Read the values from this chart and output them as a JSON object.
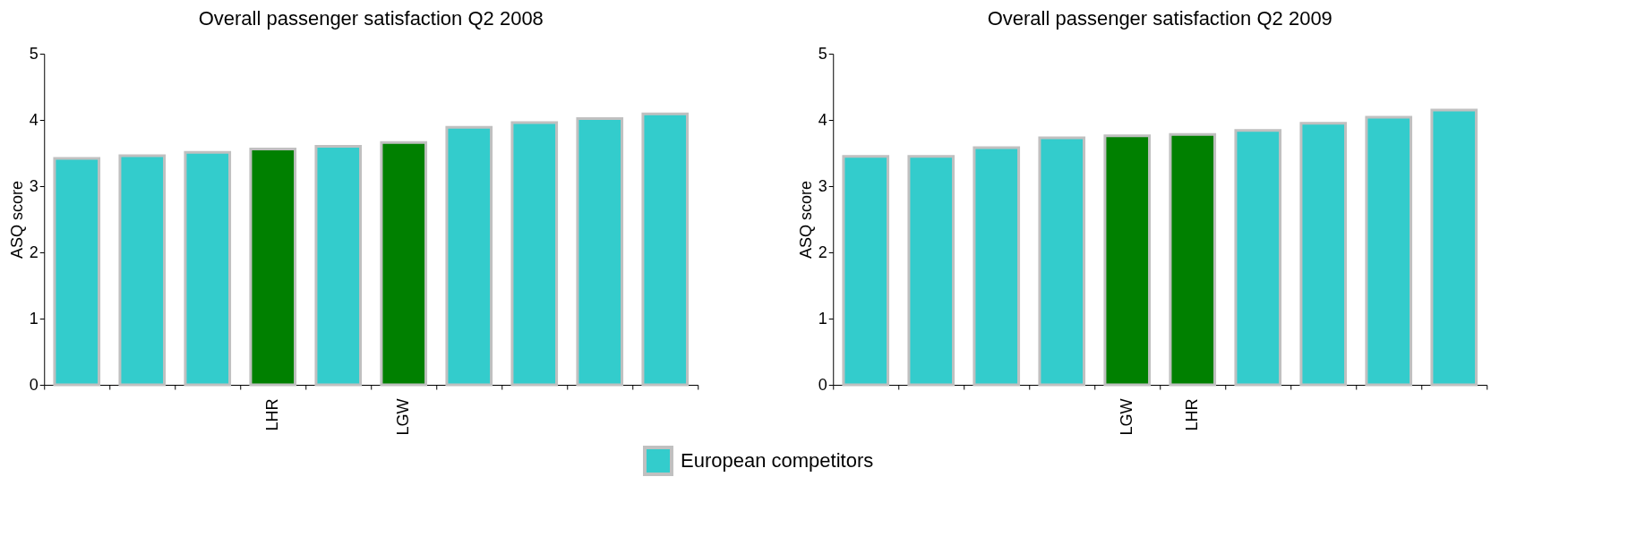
{
  "chart_data": [
    {
      "type": "bar",
      "title": "Overall passenger satisfaction Q2 2008",
      "ylabel": "ASQ score",
      "categories": [
        null,
        null,
        null,
        "LHR",
        null,
        "LGW",
        null,
        null,
        null,
        null
      ],
      "ylim": [
        0,
        5
      ],
      "yticks": [
        0,
        1,
        2,
        3,
        4,
        5
      ],
      "grid": false,
      "legend": "bottom",
      "series": [
        {
          "name": "European competitors",
          "color": "#33cccc",
          "values": [
            3.42,
            3.46,
            3.51,
            null,
            3.6,
            null,
            3.89,
            3.96,
            4.02,
            4.09
          ]
        },
        {
          "color": "#008000",
          "values": [
            null,
            null,
            null,
            3.56,
            null,
            3.66,
            null,
            null,
            null,
            null
          ]
        }
      ]
    },
    {
      "type": "bar",
      "title": "Overall passenger satisfaction Q2 2009",
      "ylabel": "ASQ score",
      "categories": [
        null,
        null,
        null,
        null,
        "LGW",
        "LHR",
        null,
        null,
        null,
        null
      ],
      "ylim": [
        0,
        5
      ],
      "yticks": [
        0,
        1,
        2,
        3,
        4,
        5
      ],
      "grid": false,
      "legend": "bottom",
      "series": [
        {
          "name": "European competitors",
          "color": "#33cccc",
          "values": [
            3.45,
            3.45,
            3.58,
            3.73,
            null,
            null,
            3.84,
            3.95,
            4.04,
            4.15
          ]
        },
        {
          "color": "#008000",
          "values": [
            null,
            null,
            null,
            null,
            3.76,
            3.78,
            null,
            null,
            null,
            null
          ]
        }
      ]
    }
  ]
}
